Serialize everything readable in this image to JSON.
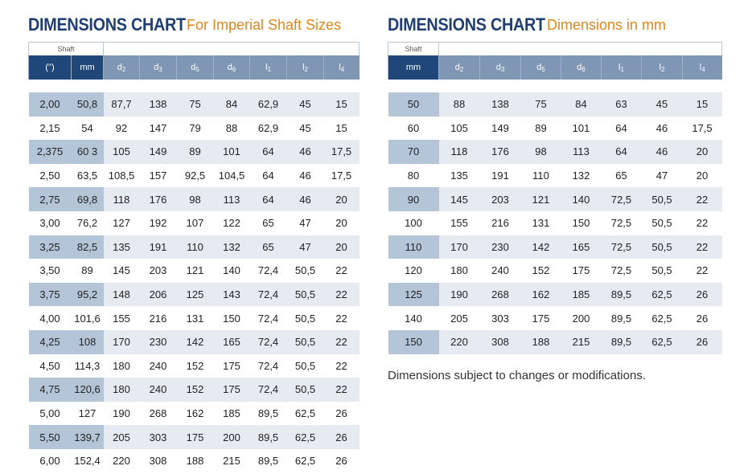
{
  "left": {
    "title": "DIMENSIONS CHART",
    "subtitle": "For Imperial Shaft Sizes",
    "shaft_caption": "Shaft",
    "headers": [
      "(\")",
      "mm",
      "d2",
      "d3",
      "d5",
      "d6",
      "l1",
      "l2",
      "l4"
    ],
    "rows": [
      [
        "2,00",
        "50,8",
        "87,7",
        "138",
        "75",
        "84",
        "62,9",
        "45",
        "15"
      ],
      [
        "2,15",
        "54",
        "92",
        "147",
        "79",
        "88",
        "62,9",
        "45",
        "15"
      ],
      [
        "2,375",
        "60 3",
        "105",
        "149",
        "89",
        "101",
        "64",
        "46",
        "17,5"
      ],
      [
        "2,50",
        "63,5",
        "108,5",
        "157",
        "92,5",
        "104,5",
        "64",
        "46",
        "17,5"
      ],
      [
        "2,75",
        "69,8",
        "118",
        "176",
        "98",
        "113",
        "64",
        "46",
        "20"
      ],
      [
        "3,00",
        "76,2",
        "127",
        "192",
        "107",
        "122",
        "65",
        "47",
        "20"
      ],
      [
        "3,25",
        "82,5",
        "135",
        "191",
        "110",
        "132",
        "65",
        "47",
        "20"
      ],
      [
        "3,50",
        "89",
        "145",
        "203",
        "121",
        "140",
        "72,4",
        "50,5",
        "22"
      ],
      [
        "3,75",
        "95,2",
        "148",
        "206",
        "125",
        "143",
        "72,4",
        "50,5",
        "22"
      ],
      [
        "4,00",
        "101,6",
        "155",
        "216",
        "131",
        "150",
        "72,4",
        "50,5",
        "22"
      ],
      [
        "4,25",
        "108",
        "170",
        "230",
        "142",
        "165",
        "72,4",
        "50,5",
        "22"
      ],
      [
        "4,50",
        "114,3",
        "180",
        "240",
        "152",
        "175",
        "72,4",
        "50,5",
        "22"
      ],
      [
        "4,75",
        "120,6",
        "180",
        "240",
        "152",
        "175",
        "72,4",
        "50,5",
        "22"
      ],
      [
        "5,00",
        "127",
        "190",
        "268",
        "162",
        "185",
        "89,5",
        "62,5",
        "26"
      ],
      [
        "5,50",
        "139,7",
        "205",
        "303",
        "175",
        "200",
        "89,5",
        "62,5",
        "26"
      ],
      [
        "6,00",
        "152,4",
        "220",
        "308",
        "188",
        "215",
        "89,5",
        "62,5",
        "26"
      ]
    ]
  },
  "right": {
    "title": "DIMENSIONS CHART",
    "subtitle": "Dimensions in  mm",
    "shaft_caption": "Shaft",
    "headers": [
      "mm",
      "d2",
      "d3",
      "d5",
      "d6",
      "l1",
      "l2",
      "l4"
    ],
    "rows": [
      [
        "50",
        "88",
        "138",
        "75",
        "84",
        "63",
        "45",
        "15"
      ],
      [
        "60",
        "105",
        "149",
        "89",
        "101",
        "64",
        "46",
        "17,5"
      ],
      [
        "70",
        "118",
        "176",
        "98",
        "113",
        "64",
        "46",
        "20"
      ],
      [
        "80",
        "135",
        "191",
        "110",
        "132",
        "65",
        "47",
        "20"
      ],
      [
        "90",
        "145",
        "203",
        "121",
        "140",
        "72,5",
        "50,5",
        "22"
      ],
      [
        "100",
        "155",
        "216",
        "131",
        "150",
        "72,5",
        "50,5",
        "22"
      ],
      [
        "110",
        "170",
        "230",
        "142",
        "165",
        "72,5",
        "50,5",
        "22"
      ],
      [
        "120",
        "180",
        "240",
        "152",
        "175",
        "72,5",
        "50,5",
        "22"
      ],
      [
        "125",
        "190",
        "268",
        "162",
        "185",
        "89,5",
        "62,5",
        "26"
      ],
      [
        "140",
        "205",
        "303",
        "175",
        "200",
        "89,5",
        "62,5",
        "26"
      ],
      [
        "150",
        "220",
        "308",
        "188",
        "215",
        "89,5",
        "62,5",
        "26"
      ]
    ],
    "note": "Dimensions subject to changes or modifications."
  }
}
